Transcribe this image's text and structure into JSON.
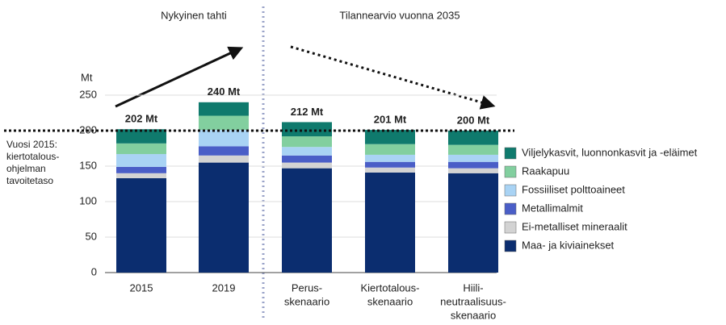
{
  "chart_data": {
    "type": "stacked-bar",
    "section_titles": [
      "Nykyinen tahti",
      "Tilannearvio vuonna 2035"
    ],
    "y_unit": "Mt",
    "categories": [
      [
        "2015"
      ],
      [
        "2019"
      ],
      [
        "Perus-",
        "skenaario"
      ],
      [
        "Kiertotalous-",
        "skenaario"
      ],
      [
        "Hiili-",
        "neutraalisuus-",
        "skenaario"
      ]
    ],
    "series": [
      {
        "name": "Maa- ja kiviainekset",
        "color": "#0b2d6f",
        "values": [
          133,
          155,
          147,
          141,
          140
        ]
      },
      {
        "name": "Ei-metalliset mineraalit",
        "color": "#d3d3d3",
        "values": [
          7,
          10,
          8,
          7,
          7
        ]
      },
      {
        "name": "Metallimalmit",
        "color": "#4a5ec7",
        "values": [
          9,
          13,
          10,
          8,
          9
        ]
      },
      {
        "name": "Fossiiliset polttoaineet",
        "color": "#a9d3f4",
        "values": [
          18,
          23,
          12,
          10,
          10
        ]
      },
      {
        "name": "Raakapuu",
        "color": "#82cf9f",
        "values": [
          15,
          20,
          15,
          15,
          14
        ]
      },
      {
        "name": "Viljelykasvit, luonnonkasvit ja -eläimet",
        "color": "#0f7a6d",
        "values": [
          20,
          19,
          20,
          20,
          20
        ]
      }
    ],
    "totals": [
      202,
      240,
      212,
      201,
      200
    ],
    "total_labels": [
      "202 Mt",
      "240 Mt",
      "212 Mt",
      "201 Mt",
      "200 Mt"
    ],
    "reference_line": {
      "value": 200,
      "label": [
        "Vuosi 2015:",
        "kiertotalous-",
        "ohjelman",
        "tavoitetaso"
      ]
    },
    "ylim": [
      0,
      250
    ],
    "yticks": [
      0,
      50,
      100,
      150,
      200,
      250
    ],
    "grid": true,
    "legend": "right"
  }
}
